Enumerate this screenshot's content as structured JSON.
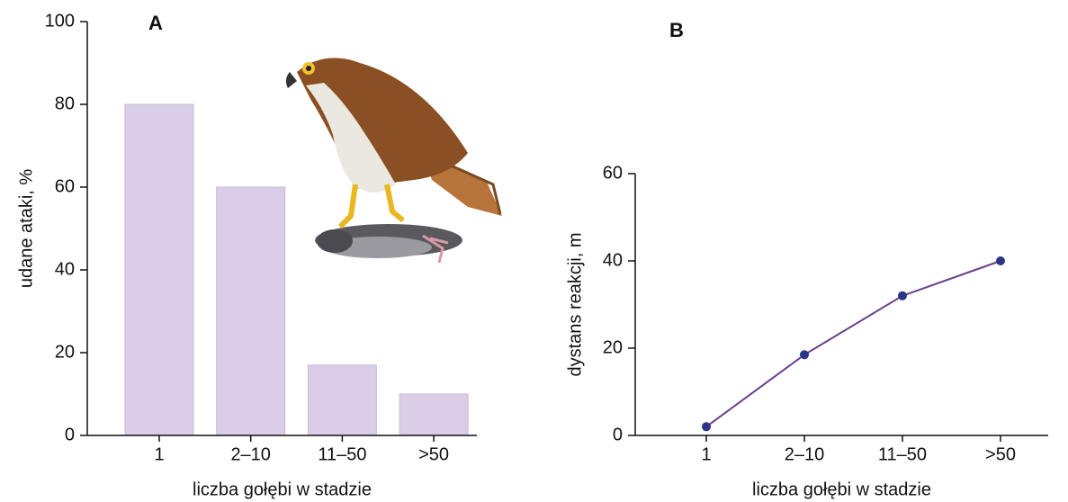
{
  "chart_data": [
    {
      "type": "bar",
      "title": "A",
      "categories": [
        "1",
        "2–10",
        "11–50",
        ">50"
      ],
      "values": [
        80,
        60,
        17,
        10
      ],
      "color": "#d9cde8",
      "ylim": [
        0,
        100
      ],
      "yticks": [
        0,
        20,
        40,
        60,
        80,
        100
      ],
      "ylabel": "udane ataki, %",
      "xlabel": "liczba gołębi w stadzie"
    },
    {
      "type": "line",
      "title": "B",
      "categories": [
        "1",
        "2–10",
        "11–50",
        ">50"
      ],
      "values": [
        2,
        18.5,
        32,
        40
      ],
      "color": "#6a3f8e",
      "marker_color": "#2b3486",
      "ylim": [
        0,
        60
      ],
      "yticks": [
        0,
        20,
        40,
        60
      ],
      "ylabel": "dystans reakcji, m",
      "xlabel": "liczba gołębi w stadzie"
    }
  ]
}
